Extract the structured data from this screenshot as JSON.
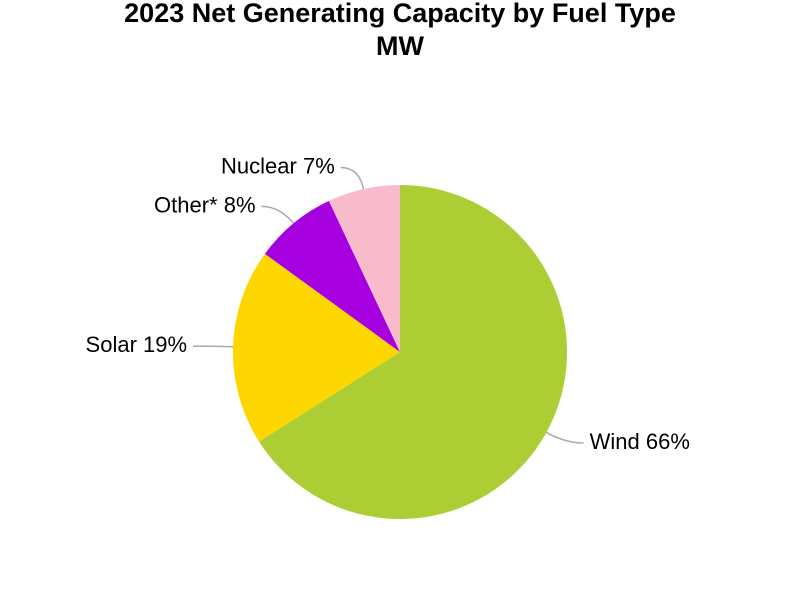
{
  "chart_data": {
    "type": "pie",
    "title": "2023 Net Generating Capacity by Fuel Type",
    "subtitle": "MW",
    "categories": [
      "Wind",
      "Solar",
      "Other*",
      "Nuclear"
    ],
    "values": [
      66,
      19,
      8,
      7
    ],
    "value_labels": [
      "66%",
      "19%",
      "8%",
      "7%"
    ],
    "colors": [
      "#adcd35",
      "#ffd700",
      "#a600e0",
      "#f8bbcb"
    ]
  }
}
